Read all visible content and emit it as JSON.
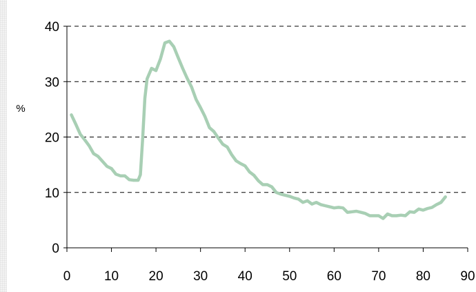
{
  "chart_data": {
    "type": "line",
    "title": "",
    "xlabel": "",
    "ylabel": "%",
    "xlim": [
      0,
      90
    ],
    "ylim": [
      0,
      40
    ],
    "x_ticks": [
      0,
      10,
      20,
      30,
      40,
      50,
      60,
      70,
      80,
      90
    ],
    "y_ticks": [
      0,
      10,
      20,
      30,
      40
    ],
    "grid": "horizontal dashed",
    "colors": {
      "line": "#a8cfb4",
      "grid": "#000000",
      "axis": "#000000"
    },
    "series": [
      {
        "name": "",
        "x": [
          1,
          2,
          3,
          4,
          5,
          6,
          7,
          8,
          9,
          10,
          11,
          12,
          13,
          14,
          15,
          16,
          16.5,
          17,
          17.5,
          18,
          19,
          20,
          21,
          22,
          23,
          24,
          25,
          26,
          27,
          28,
          29,
          30,
          31,
          32,
          33,
          34,
          35,
          36,
          37,
          38,
          39,
          40,
          41,
          42,
          43,
          44,
          45,
          46,
          47,
          48,
          49,
          50,
          51,
          52,
          53,
          54,
          55,
          56,
          57,
          58,
          59,
          60,
          61,
          62,
          63,
          64,
          65,
          66,
          67,
          68,
          69,
          70,
          71,
          72,
          73,
          74,
          75,
          76,
          77,
          78,
          79,
          80,
          81,
          82,
          83,
          84,
          85
        ],
        "y": [
          24.0,
          22.3,
          20.5,
          19.5,
          18.4,
          17.0,
          16.5,
          15.6,
          14.7,
          14.3,
          13.3,
          13.0,
          13.0,
          12.3,
          12.2,
          12.2,
          13.2,
          19.5,
          27.0,
          30.5,
          32.4,
          32.0,
          34.1,
          37.0,
          37.3,
          36.3,
          34.3,
          32.4,
          30.6,
          29.0,
          26.8,
          25.3,
          23.7,
          21.7,
          21.0,
          19.8,
          18.7,
          18.2,
          16.8,
          15.7,
          15.2,
          14.8,
          13.7,
          13.1,
          12.1,
          11.4,
          11.4,
          11.0,
          10.0,
          9.7,
          9.5,
          9.3,
          9.0,
          8.8,
          8.2,
          8.5,
          7.9,
          8.2,
          7.8,
          7.6,
          7.4,
          7.2,
          7.3,
          7.2,
          6.4,
          6.5,
          6.6,
          6.4,
          6.2,
          5.8,
          5.8,
          5.8,
          5.3,
          6.1,
          5.8,
          5.8,
          5.9,
          5.8,
          6.5,
          6.4,
          7.0,
          6.8,
          7.1,
          7.3,
          7.8,
          8.2,
          9.2
        ]
      }
    ]
  }
}
